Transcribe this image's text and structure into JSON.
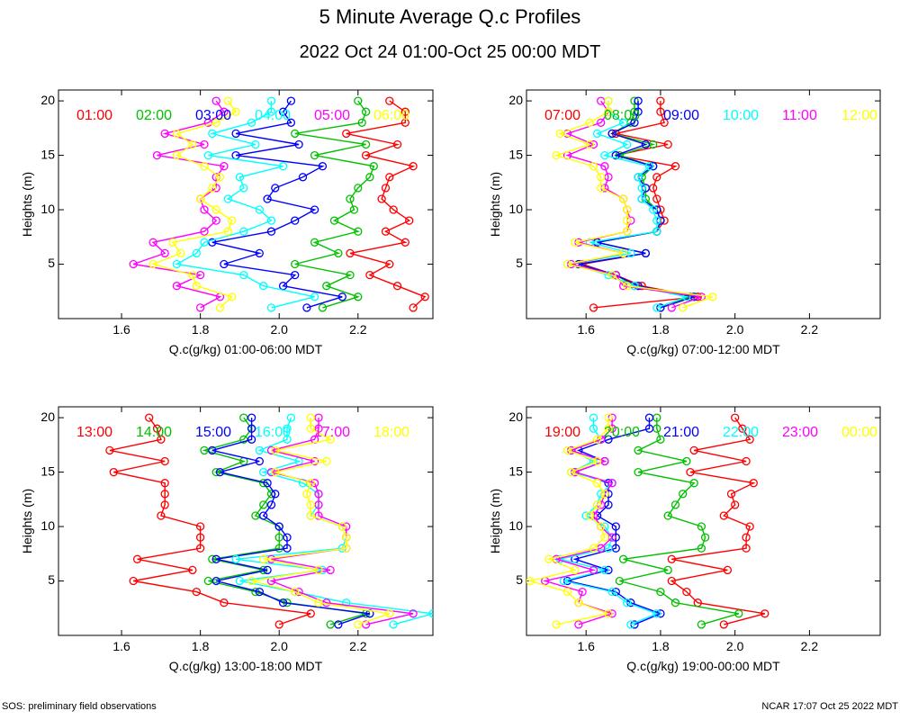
{
  "title": "5 Minute Average Q.c Profiles",
  "subtitle": "2022 Oct 24 01:00-Oct 25 00:00 MDT",
  "footer_left": "SOS: preliminary field observations",
  "footer_right": "NCAR 17:07 Oct 25 2022 MDT",
  "colors": {
    "red": "#ff0000",
    "green": "#00c000",
    "blue": "#0000ff",
    "cyan": "#00ffff",
    "magenta": "#ff00ff",
    "yellow": "#ffff00"
  },
  "chart_data": [
    {
      "type": "line",
      "title": "Q.c(g/kg) 01:00-06:00 MDT",
      "xlabel": "Q.c(g/kg) 01:00-06:00 MDT",
      "ylabel": "Heights (m)",
      "xlim": [
        1.44,
        2.39
      ],
      "ylim": [
        0,
        21
      ],
      "xticks": [
        "1.6",
        "1.8",
        "2.0",
        "2.2"
      ],
      "yticks": [
        "5",
        "10",
        "15",
        "20"
      ],
      "heights": [
        1,
        2,
        3,
        4,
        5,
        6,
        7,
        8,
        9,
        10,
        11,
        12,
        13,
        14,
        15,
        16,
        17,
        18,
        19,
        20
      ],
      "series": [
        {
          "name": "01:00",
          "color": "red",
          "values": [
            2.34,
            2.37,
            2.3,
            2.23,
            2.28,
            2.18,
            2.32,
            2.27,
            2.33,
            2.29,
            2.26,
            2.27,
            2.28,
            2.34,
            2.22,
            2.3,
            2.17,
            2.32,
            2.32,
            2.28
          ]
        },
        {
          "name": "02:00",
          "color": "green",
          "values": [
            2.11,
            2.2,
            2.12,
            2.18,
            2.04,
            2.15,
            2.09,
            2.2,
            2.14,
            2.19,
            2.18,
            2.2,
            2.23,
            2.24,
            2.09,
            2.22,
            2.04,
            2.21,
            2.22,
            2.2
          ]
        },
        {
          "name": "03:00",
          "color": "blue",
          "values": [
            2.07,
            2.16,
            2.01,
            2.04,
            1.86,
            1.95,
            1.83,
            1.98,
            2.04,
            2.09,
            1.97,
            1.99,
            2.06,
            2.11,
            1.89,
            2.05,
            1.89,
            2.03,
            2.01,
            2.03
          ]
        },
        {
          "name": "04:00",
          "color": "cyan",
          "values": [
            1.98,
            2.09,
            1.96,
            1.91,
            1.74,
            1.79,
            1.81,
            1.91,
            1.98,
            1.95,
            1.87,
            1.91,
            1.9,
            2.01,
            1.82,
            1.94,
            1.83,
            1.93,
            1.98,
            1.98
          ]
        },
        {
          "name": "05:00",
          "color": "magenta",
          "values": [
            1.8,
            1.85,
            1.74,
            1.8,
            1.63,
            1.71,
            1.68,
            1.81,
            1.84,
            1.81,
            1.8,
            1.84,
            1.84,
            1.86,
            1.69,
            1.81,
            1.71,
            1.82,
            1.86,
            1.84
          ]
        },
        {
          "name": "06:00",
          "color": "yellow",
          "values": [
            1.85,
            1.88,
            1.79,
            1.78,
            1.68,
            1.75,
            1.73,
            1.87,
            1.88,
            1.84,
            1.8,
            1.83,
            1.85,
            1.81,
            1.74,
            1.78,
            1.74,
            1.84,
            1.89,
            1.87
          ]
        }
      ]
    },
    {
      "type": "line",
      "title": "Q.c(g/kg) 07:00-12:00 MDT",
      "xlabel": "Q.c(g/kg) 07:00-12:00 MDT",
      "ylabel": "Heights (m)",
      "xlim": [
        1.44,
        2.39
      ],
      "ylim": [
        0,
        21
      ],
      "xticks": [
        "1.6",
        "1.8",
        "2.0",
        "2.2"
      ],
      "yticks": [
        "5",
        "10",
        "15",
        "20"
      ],
      "heights": [
        1,
        2,
        3,
        4,
        5,
        6,
        7,
        8,
        9,
        10,
        11,
        12,
        13,
        14,
        15,
        16,
        17,
        18,
        19,
        20
      ],
      "series": [
        {
          "name": "07:00",
          "color": "red",
          "values": [
            1.62,
            1.9,
            1.75,
            1.68,
            1.59,
            1.76,
            1.63,
            1.79,
            1.81,
            1.8,
            1.79,
            1.78,
            1.79,
            1.84,
            1.68,
            1.82,
            1.68,
            1.81,
            1.8,
            1.8
          ]
        },
        {
          "name": "08:00",
          "color": "green",
          "values": [
            1.8,
            1.88,
            1.73,
            1.68,
            1.58,
            1.76,
            1.63,
            1.79,
            1.8,
            1.79,
            1.76,
            1.76,
            1.75,
            1.78,
            1.69,
            1.78,
            1.67,
            1.72,
            1.73,
            1.73
          ]
        },
        {
          "name": "09:00",
          "color": "blue",
          "values": [
            1.8,
            1.89,
            1.74,
            1.68,
            1.58,
            1.76,
            1.63,
            1.79,
            1.8,
            1.79,
            1.75,
            1.76,
            1.74,
            1.78,
            1.68,
            1.76,
            1.67,
            1.73,
            1.74,
            1.74
          ]
        },
        {
          "name": "10:00",
          "color": "cyan",
          "values": [
            1.79,
            1.87,
            1.73,
            1.66,
            1.56,
            1.72,
            1.61,
            1.79,
            1.79,
            1.78,
            1.75,
            1.75,
            1.74,
            1.77,
            1.65,
            1.71,
            1.63,
            1.7,
            1.66,
            1.66
          ]
        },
        {
          "name": "11:00",
          "color": "magenta",
          "values": [
            1.83,
            1.91,
            1.7,
            1.68,
            1.56,
            1.7,
            1.58,
            1.71,
            1.72,
            1.71,
            1.7,
            1.65,
            1.66,
            1.65,
            1.55,
            1.62,
            1.55,
            1.64,
            1.66,
            1.64
          ]
        },
        {
          "name": "12:00",
          "color": "yellow",
          "values": [
            1.86,
            1.94,
            1.71,
            1.67,
            1.55,
            1.7,
            1.57,
            1.71,
            1.71,
            1.71,
            1.7,
            1.64,
            1.64,
            1.62,
            1.52,
            1.61,
            1.53,
            1.61,
            1.66,
            1.66
          ]
        }
      ]
    },
    {
      "type": "line",
      "title": "Q.c(g/kg) 13:00-18:00 MDT",
      "xlabel": "Q.c(g/kg) 13:00-18:00 MDT",
      "ylabel": "Heights (m)",
      "xlim": [
        1.44,
        2.39
      ],
      "ylim": [
        0,
        21
      ],
      "xticks": [
        "1.6",
        "1.8",
        "2.0",
        "2.2"
      ],
      "yticks": [
        "5",
        "10",
        "15",
        "20"
      ],
      "heights": [
        1,
        2,
        3,
        4,
        5,
        6,
        7,
        8,
        9,
        10,
        11,
        12,
        13,
        14,
        15,
        16,
        17,
        18,
        19,
        20
      ],
      "series": [
        {
          "name": "13:00",
          "color": "red",
          "values": [
            2.0,
            2.08,
            1.86,
            1.79,
            1.63,
            1.78,
            1.64,
            1.8,
            1.8,
            1.8,
            1.7,
            1.71,
            1.71,
            1.71,
            1.58,
            1.71,
            1.57,
            1.7,
            1.69,
            1.67
          ]
        },
        {
          "name": "14:00",
          "color": "green",
          "values": [
            2.13,
            2.22,
            2.02,
            1.94,
            1.82,
            1.96,
            1.83,
            2.0,
            2.0,
            2.0,
            1.94,
            1.96,
            1.98,
            1.96,
            1.84,
            1.91,
            1.81,
            1.91,
            1.93,
            1.91
          ]
        },
        {
          "name": "15:00",
          "color": "blue",
          "values": [
            2.15,
            2.23,
            2.01,
            1.95,
            1.84,
            1.97,
            1.84,
            2.02,
            2.02,
            2.0,
            1.96,
            1.98,
            1.99,
            1.97,
            1.85,
            1.95,
            1.83,
            1.93,
            1.93,
            1.93
          ]
        },
        {
          "name": "16:00",
          "color": "cyan",
          "values": [
            2.29,
            2.39,
            2.17,
            2.04,
            1.9,
            2.11,
            1.89,
            2.16,
            2.17,
            2.16,
            2.08,
            2.1,
            2.1,
            2.06,
            1.96,
            2.05,
            1.95,
            2.02,
            2.02,
            2.03
          ]
        },
        {
          "name": "17:00",
          "color": "magenta",
          "values": [
            2.22,
            2.34,
            2.12,
            2.05,
            1.98,
            2.13,
            1.98,
            2.17,
            2.17,
            2.17,
            2.1,
            2.1,
            2.1,
            2.09,
            1.98,
            2.09,
            1.98,
            2.09,
            2.1,
            2.1
          ]
        },
        {
          "name": "18:00",
          "color": "yellow",
          "values": [
            2.2,
            2.28,
            2.1,
            2.04,
            1.93,
            2.1,
            1.96,
            2.17,
            2.17,
            2.16,
            2.08,
            2.08,
            2.07,
            2.08,
            1.99,
            2.12,
            1.99,
            2.13,
            2.08,
            2.08
          ]
        }
      ]
    },
    {
      "type": "line",
      "title": "Q.c(g/kg) 19:00-00:00 MDT",
      "xlabel": "Q.c(g/kg) 19:00-00:00 MDT",
      "ylabel": "Heights (m)",
      "xlim": [
        1.44,
        2.39
      ],
      "ylim": [
        0,
        21
      ],
      "xticks": [
        "1.6",
        "1.8",
        "2.0",
        "2.2"
      ],
      "yticks": [
        "5",
        "10",
        "15",
        "20"
      ],
      "heights": [
        1,
        2,
        3,
        4,
        5,
        6,
        7,
        8,
        9,
        10,
        11,
        12,
        13,
        14,
        15,
        16,
        17,
        18,
        19,
        20
      ],
      "series": [
        {
          "name": "19:00",
          "color": "red",
          "values": [
            1.97,
            2.08,
            1.9,
            1.87,
            1.83,
            1.98,
            1.83,
            2.03,
            2.03,
            2.04,
            1.97,
            2.0,
            1.99,
            2.05,
            1.88,
            2.03,
            1.89,
            2.04,
            2.02,
            2.0
          ]
        },
        {
          "name": "20:00",
          "color": "green",
          "values": [
            1.91,
            2.01,
            1.84,
            1.8,
            1.69,
            1.82,
            1.7,
            1.91,
            1.92,
            1.91,
            1.82,
            1.84,
            1.86,
            1.89,
            1.74,
            1.87,
            1.74,
            1.8,
            1.79,
            1.79
          ]
        },
        {
          "name": "21:00",
          "color": "blue",
          "values": [
            1.73,
            1.8,
            1.72,
            1.68,
            1.55,
            1.66,
            1.57,
            1.68,
            1.68,
            1.68,
            1.63,
            1.66,
            1.66,
            1.66,
            1.57,
            1.65,
            1.58,
            1.66,
            1.77,
            1.77
          ]
        },
        {
          "name": "22:00",
          "color": "cyan",
          "values": [
            1.72,
            1.79,
            1.71,
            1.67,
            1.54,
            1.65,
            1.53,
            1.66,
            1.67,
            1.65,
            1.6,
            1.63,
            1.64,
            1.67,
            1.56,
            1.62,
            1.56,
            1.64,
            1.62,
            1.62
          ]
        },
        {
          "name": "23:00",
          "color": "magenta",
          "values": [
            1.58,
            1.67,
            1.58,
            1.59,
            1.49,
            1.62,
            1.52,
            1.64,
            1.67,
            1.64,
            1.62,
            1.64,
            1.65,
            1.67,
            1.57,
            1.65,
            1.56,
            1.64,
            1.67,
            1.67
          ]
        },
        {
          "name": "00:00",
          "color": "yellow",
          "values": [
            1.52,
            1.66,
            1.58,
            1.55,
            1.45,
            1.57,
            1.5,
            1.62,
            1.65,
            1.64,
            1.61,
            1.63,
            1.65,
            1.63,
            1.56,
            1.63,
            1.55,
            1.63,
            1.66,
            1.66
          ]
        }
      ]
    }
  ]
}
